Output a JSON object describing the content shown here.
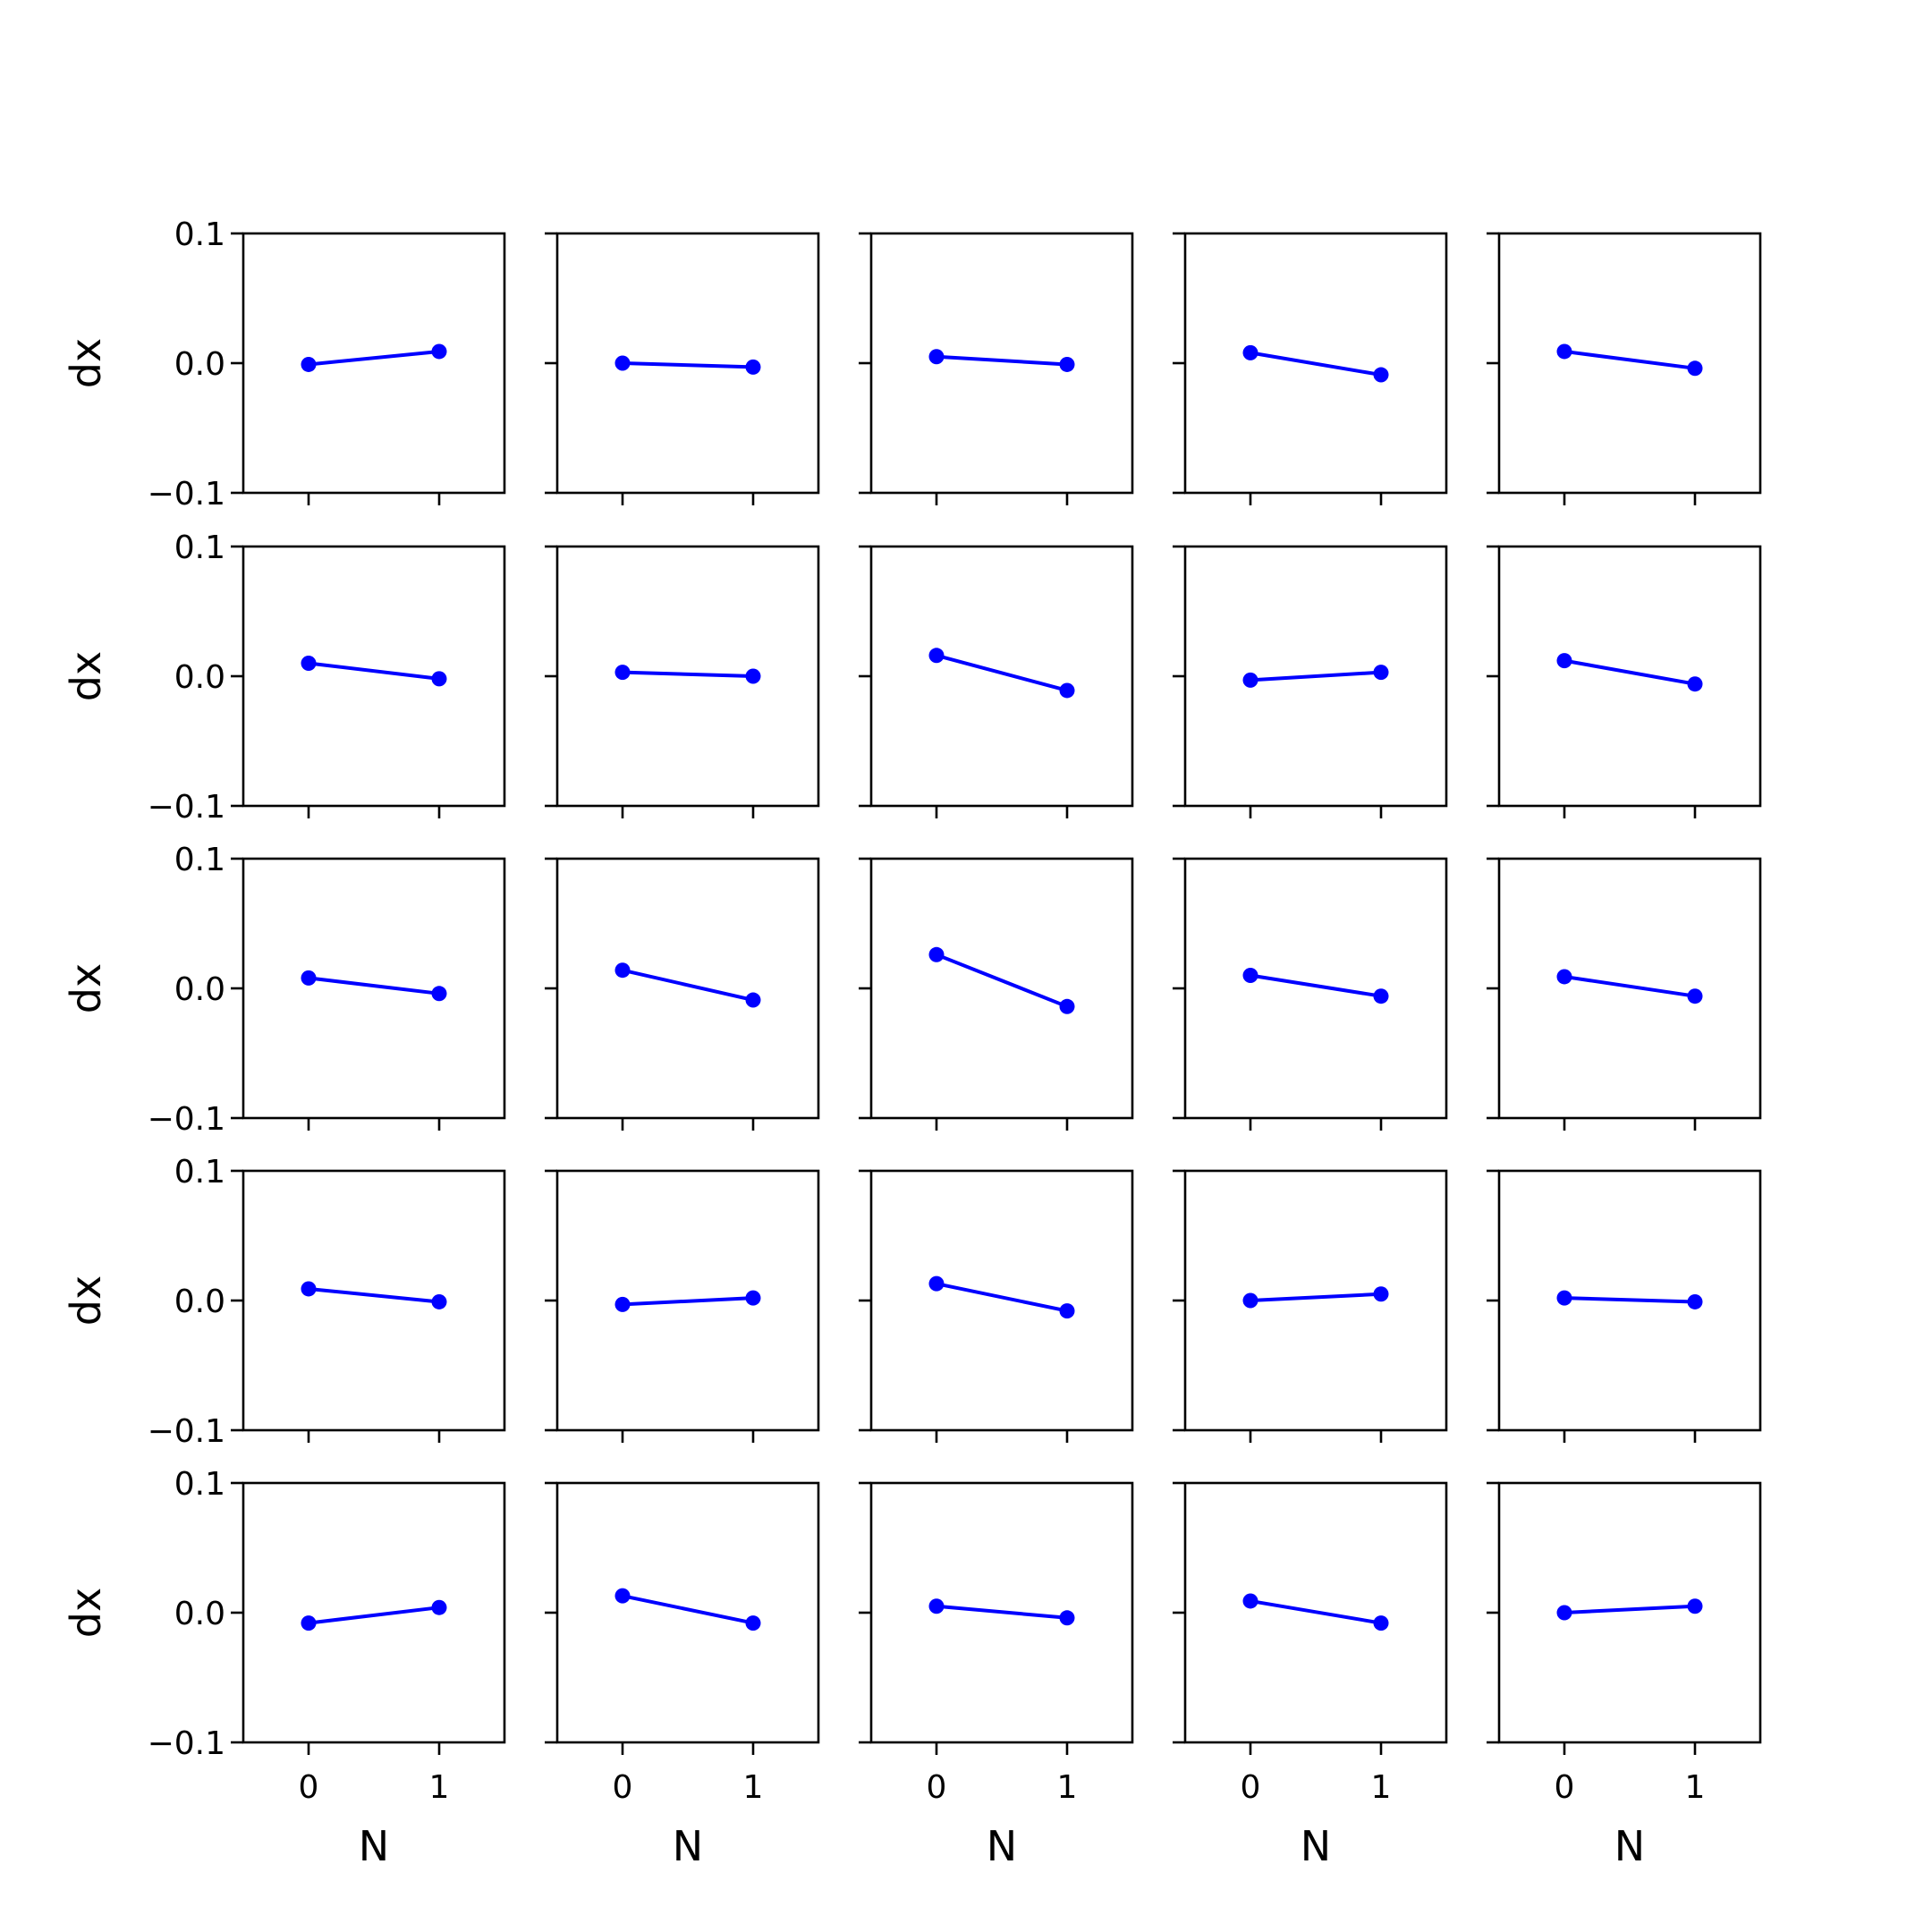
{
  "chart_data": {
    "type": "line",
    "layout": "5x5 grid of subplots",
    "shared_x": true,
    "shared_y": true,
    "xlabel": "N",
    "ylabel": "dx",
    "x": [
      0,
      1
    ],
    "xlim": [
      -0.5,
      1.5
    ],
    "ylim": [
      -0.1,
      0.1
    ],
    "x_ticks": [
      "0",
      "1"
    ],
    "y_ticks": [
      "0.1",
      "0.0",
      "−0.1"
    ],
    "y_tick_values": [
      0.1,
      0.0,
      -0.1
    ],
    "grid": false,
    "legend": "none",
    "color": "#0000ff",
    "marker": "circle",
    "panels": [
      {
        "row": 0,
        "col": 0,
        "y": [
          -0.001,
          0.009
        ]
      },
      {
        "row": 0,
        "col": 1,
        "y": [
          0.0,
          -0.003
        ]
      },
      {
        "row": 0,
        "col": 2,
        "y": [
          0.005,
          -0.001
        ]
      },
      {
        "row": 0,
        "col": 3,
        "y": [
          0.008,
          -0.009
        ]
      },
      {
        "row": 0,
        "col": 4,
        "y": [
          0.009,
          -0.004
        ]
      },
      {
        "row": 1,
        "col": 0,
        "y": [
          0.01,
          -0.002
        ]
      },
      {
        "row": 1,
        "col": 1,
        "y": [
          0.003,
          0.0
        ]
      },
      {
        "row": 1,
        "col": 2,
        "y": [
          0.016,
          -0.011
        ]
      },
      {
        "row": 1,
        "col": 3,
        "y": [
          -0.003,
          0.003
        ]
      },
      {
        "row": 1,
        "col": 4,
        "y": [
          0.012,
          -0.006
        ]
      },
      {
        "row": 2,
        "col": 0,
        "y": [
          0.008,
          -0.004
        ]
      },
      {
        "row": 2,
        "col": 1,
        "y": [
          0.014,
          -0.009
        ]
      },
      {
        "row": 2,
        "col": 2,
        "y": [
          0.026,
          -0.014
        ]
      },
      {
        "row": 2,
        "col": 3,
        "y": [
          0.01,
          -0.006
        ]
      },
      {
        "row": 2,
        "col": 4,
        "y": [
          0.009,
          -0.006
        ]
      },
      {
        "row": 3,
        "col": 0,
        "y": [
          0.009,
          -0.001
        ]
      },
      {
        "row": 3,
        "col": 1,
        "y": [
          -0.003,
          0.002
        ]
      },
      {
        "row": 3,
        "col": 2,
        "y": [
          0.013,
          -0.008
        ]
      },
      {
        "row": 3,
        "col": 3,
        "y": [
          0.0,
          0.005
        ]
      },
      {
        "row": 3,
        "col": 4,
        "y": [
          0.002,
          -0.001
        ]
      },
      {
        "row": 4,
        "col": 0,
        "y": [
          -0.008,
          0.004
        ]
      },
      {
        "row": 4,
        "col": 1,
        "y": [
          0.013,
          -0.008
        ]
      },
      {
        "row": 4,
        "col": 2,
        "y": [
          0.005,
          -0.004
        ]
      },
      {
        "row": 4,
        "col": 3,
        "y": [
          0.009,
          -0.008
        ]
      },
      {
        "row": 4,
        "col": 4,
        "y": [
          0.0,
          0.005
        ]
      }
    ]
  }
}
